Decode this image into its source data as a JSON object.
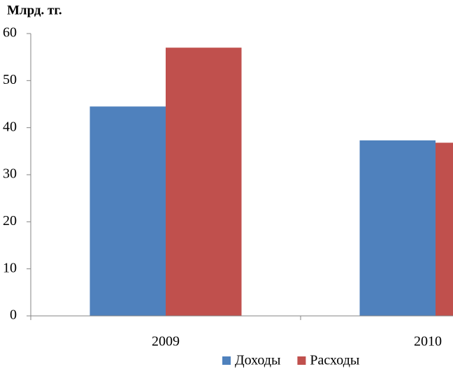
{
  "chart_data": {
    "type": "bar",
    "title": "Млрд. тг.",
    "categories": [
      "2009",
      "2010"
    ],
    "series": [
      {
        "name": "Доходы",
        "color": "#4f81bd",
        "values": [
          44.5,
          37.3
        ]
      },
      {
        "name": "Расходы",
        "color": "#c0504d",
        "values": [
          57,
          36.8
        ]
      }
    ],
    "ylim": [
      0,
      60
    ],
    "yticks": [
      0,
      10,
      20,
      30,
      40,
      50,
      60
    ],
    "legend": "bottom"
  }
}
